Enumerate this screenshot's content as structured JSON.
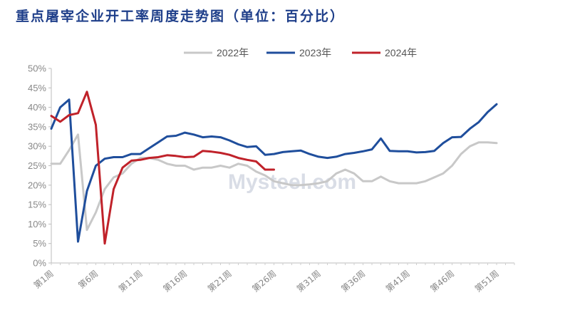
{
  "chart_data": {
    "type": "line",
    "title": "重点屠宰企业开工率周度走势图（单位：百分比）",
    "watermark": "Mysteel.com",
    "x_tick_labels": [
      "第1周",
      "第6周",
      "第11周",
      "第16周",
      "第21周",
      "第26周",
      "第31周",
      "第36周",
      "第41周",
      "第46周",
      "第51周"
    ],
    "y_tick_labels": [
      "0%",
      "5%",
      "10%",
      "15%",
      "20%",
      "25%",
      "30%",
      "35%",
      "40%",
      "45%",
      "50%"
    ],
    "ylim": [
      0,
      50
    ],
    "x_range": [
      1,
      53
    ],
    "legend_position": "top",
    "grid": false,
    "series": [
      {
        "name": "2022年",
        "color": "#c8c8c8",
        "values": [
          25.5,
          25.5,
          29,
          33,
          8.5,
          13,
          19,
          22,
          23,
          25.5,
          27,
          27,
          26.5,
          25.5,
          25,
          25,
          24,
          24.5,
          24.5,
          25,
          24.5,
          25.5,
          25,
          23.5,
          22.5,
          21,
          20.5,
          20,
          20,
          20.2,
          20.5,
          21,
          23,
          24,
          23,
          21,
          21,
          22.2,
          21,
          20.5,
          20.5,
          20.5,
          21,
          22,
          23,
          25,
          28,
          30,
          31,
          31,
          30.8
        ]
      },
      {
        "name": "2023年",
        "color": "#1f4e9c",
        "values": [
          34.5,
          40,
          42,
          5.5,
          18.5,
          25,
          26.8,
          27.2,
          27.2,
          28,
          28,
          29.5,
          31,
          32.5,
          32.7,
          33.5,
          33,
          32.3,
          32.5,
          32.3,
          31.5,
          30.5,
          29.8,
          30,
          27.8,
          28,
          28.5,
          28.7,
          28.9,
          28,
          27.3,
          27,
          27.3,
          28,
          28.3,
          28.7,
          29.2,
          32,
          28.8,
          28.7,
          28.7,
          28.4,
          28.5,
          28.8,
          30.8,
          32.3,
          32.4,
          34.5,
          36.2,
          38.8,
          40.8
        ]
      },
      {
        "name": "2024年",
        "color": "#c0222a",
        "values": [
          37.8,
          36.3,
          38,
          38.5,
          44,
          35.5,
          5,
          19,
          24.5,
          26.3,
          26.5,
          27,
          27.2,
          27.7,
          27.5,
          27.2,
          27.3,
          28.8,
          28.6,
          28.3,
          27.8,
          27,
          26.5,
          26.1,
          24,
          24
        ]
      }
    ]
  }
}
